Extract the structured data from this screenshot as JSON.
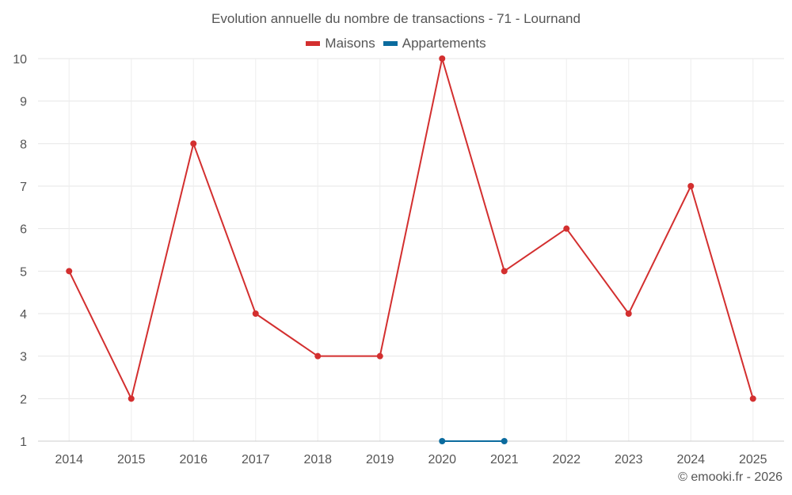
{
  "chart_data": {
    "type": "line",
    "title": "Evolution annuelle du nombre de transactions - 71 - Lournand",
    "x": [
      "2014",
      "2015",
      "2016",
      "2017",
      "2018",
      "2019",
      "2020",
      "2021",
      "2022",
      "2023",
      "2024",
      "2025"
    ],
    "series": [
      {
        "name": "Maisons",
        "color": "#d32f2f",
        "values": [
          5,
          2,
          8,
          4,
          3,
          3,
          10,
          5,
          6,
          4,
          7,
          2
        ]
      },
      {
        "name": "Appartements",
        "color": "#0b6b9e",
        "values": [
          null,
          null,
          null,
          null,
          null,
          null,
          1,
          1,
          null,
          null,
          null,
          null
        ]
      }
    ],
    "yticks": [
      1,
      2,
      3,
      4,
      5,
      6,
      7,
      8,
      9,
      10
    ],
    "ylim": [
      1,
      10
    ],
    "grid": true,
    "legend_position": "top-center"
  },
  "credit": "© emooki.fr - 2026"
}
